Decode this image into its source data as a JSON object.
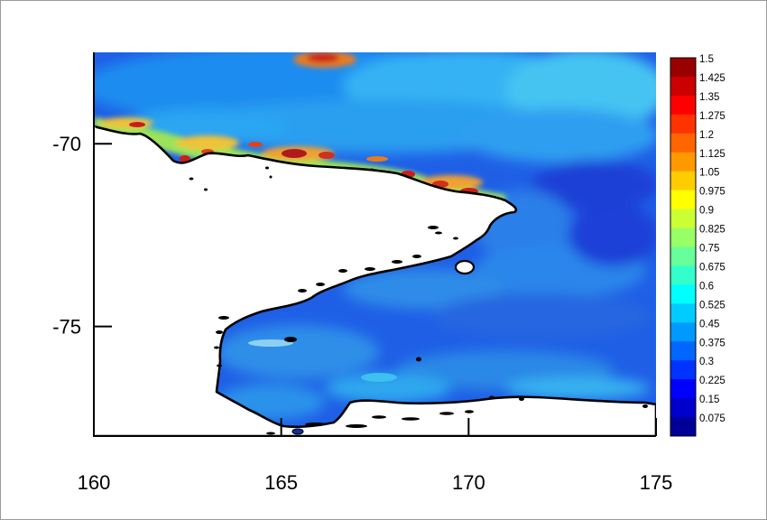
{
  "chart_data": {
    "type": "heatmap",
    "title": "",
    "xlabel": "",
    "ylabel": "",
    "xlim": [
      160,
      175
    ],
    "ylim": [
      -78,
      -67.5
    ],
    "x_ticks": [
      160,
      165,
      170,
      175
    ],
    "y_ticks": [
      -70,
      -75
    ],
    "colorbar": {
      "min": 0.075,
      "max": 1.5,
      "step": 0.075,
      "labels": [
        "1.5",
        "1.425",
        "1.35",
        "1.275",
        "1.2",
        "1.125",
        "1.05",
        "0.975",
        "0.9",
        "0.825",
        "0.75",
        "0.675",
        "0.6",
        "0.525",
        "0.45",
        "0.375",
        "0.3",
        "0.225",
        "0.15",
        "0.075"
      ]
    },
    "land_color": "#ffffff",
    "coastline_color": "#000000"
  }
}
